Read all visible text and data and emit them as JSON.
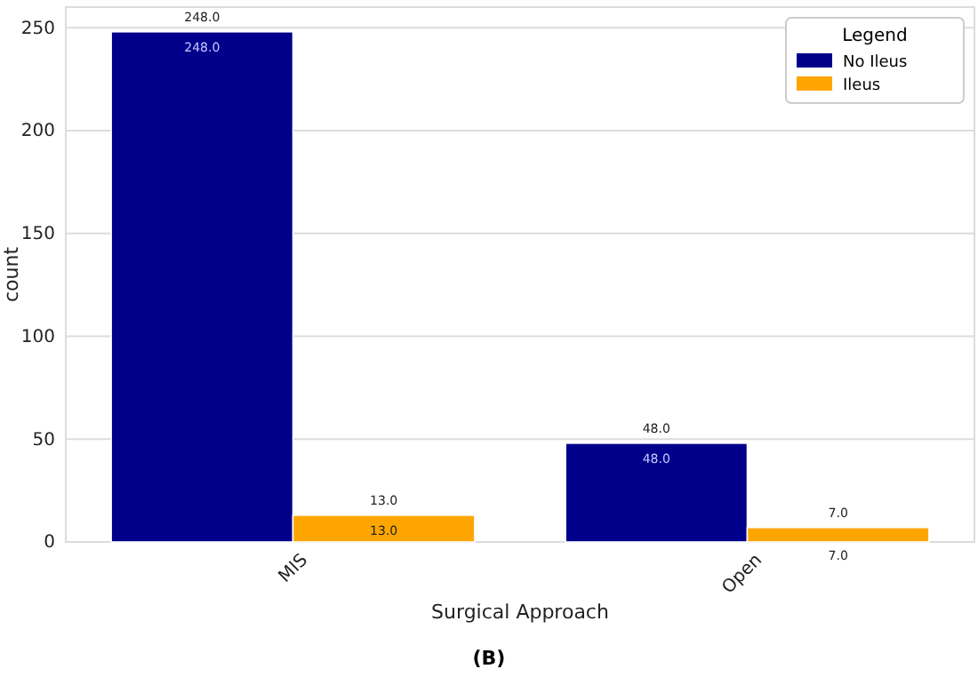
{
  "chart_data": {
    "type": "bar",
    "xlabel": "Surgical Approach",
    "ylabel": "count",
    "categories": [
      "MIS",
      "Open"
    ],
    "series": [
      {
        "name": "No Ileus",
        "color": "#00008b",
        "values": [
          248,
          48
        ],
        "value_labels": [
          "248.0",
          "48.0"
        ]
      },
      {
        "name": "Ileus",
        "color": "#ffa500",
        "values": [
          13,
          7
        ],
        "value_labels": [
          "13.0",
          "7.0"
        ]
      }
    ],
    "ylim": [
      0,
      260
    ],
    "yticks": [
      0,
      50,
      100,
      150,
      200,
      250
    ],
    "grid": "y",
    "legend": "top right",
    "legend_title": "Legend",
    "annotations": [
      "(B)"
    ]
  }
}
